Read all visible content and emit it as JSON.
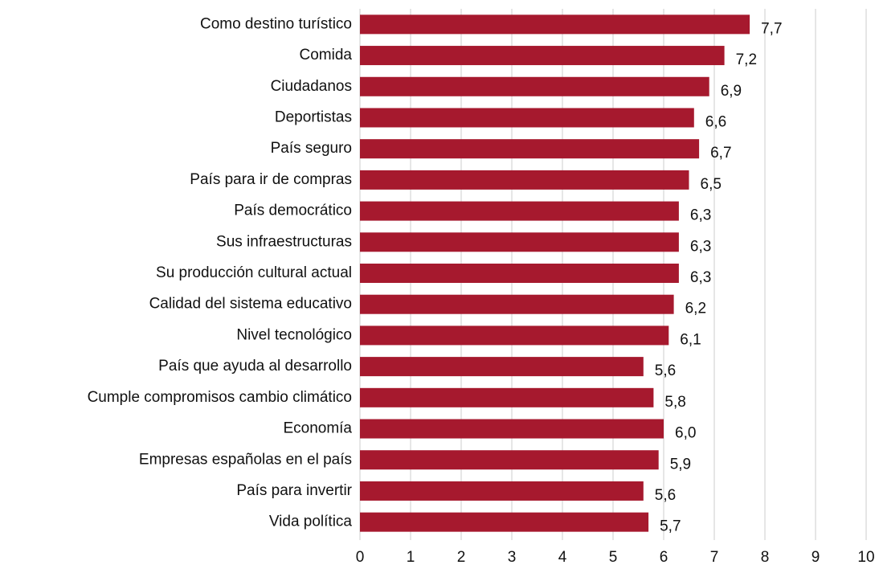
{
  "chart_data": {
    "type": "bar",
    "orientation": "horizontal",
    "categories": [
      "Como destino turístico",
      "Comida",
      "Ciudadanos",
      "Deportistas",
      "País seguro",
      "País para ir de compras",
      "País democrático",
      "Sus infraestructuras",
      "Su producción cultural actual",
      "Calidad del sistema educativo",
      "Nivel tecnológico",
      "País que ayuda al desarrollo",
      "Cumple compromisos cambio climático",
      "Economía",
      "Empresas españolas en el país",
      "País para invertir",
      "Vida política"
    ],
    "values": [
      7.7,
      7.2,
      6.9,
      6.6,
      6.7,
      6.5,
      6.3,
      6.3,
      6.3,
      6.2,
      6.1,
      5.6,
      5.8,
      6.0,
      5.9,
      5.6,
      5.7
    ],
    "value_labels": [
      "7,7",
      "7,2",
      "6,9",
      "6,6",
      "6,7",
      "6,5",
      "6,3",
      "6,3",
      "6,3",
      "6,2",
      "6,1",
      "5,6",
      "5,8",
      "6,0",
      "5,9",
      "5,6",
      "5,7"
    ],
    "color": "#a6192e",
    "xlim": [
      0,
      10
    ],
    "xticks": [
      0,
      1,
      2,
      3,
      4,
      5,
      6,
      7,
      8,
      9,
      10
    ],
    "grid": true
  }
}
